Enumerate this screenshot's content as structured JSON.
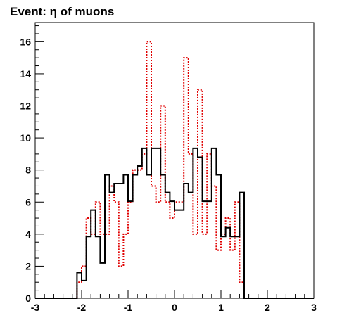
{
  "chart_data": {
    "type": "histogram",
    "title": "Event: η of muons",
    "xlabel": "",
    "ylabel": "",
    "xlim": [
      -3,
      3
    ],
    "ylim": [
      0,
      17.2
    ],
    "x_ticks": [
      "-3",
      "-2",
      "-1",
      "0",
      "1",
      "2",
      "3"
    ],
    "y_ticks": [
      "0",
      "2",
      "4",
      "6",
      "8",
      "10",
      "12",
      "14",
      "16"
    ],
    "bin_width": 0.1,
    "x_start": -2.1,
    "grid": false,
    "legend": "none",
    "series": [
      {
        "style": "solid",
        "color": "#000000",
        "values": [
          1.6,
          1.1,
          3.85,
          5.5,
          3.85,
          2.2,
          7.7,
          6.6,
          7.15,
          7.15,
          7.7,
          6.05,
          7.7,
          8.25,
          9.35,
          7.7,
          9.35,
          9.35,
          7.7,
          6.6,
          6.05,
          5.5,
          5.5,
          7.15,
          6.6,
          9.35,
          8.8,
          6.05,
          6.05,
          9.35,
          7.7,
          3.85,
          4.4,
          3.85,
          3.85,
          6.6,
          0
        ]
      },
      {
        "style": "dotted",
        "color": "#e00000",
        "values": [
          1,
          2,
          5,
          4,
          6,
          4,
          4,
          7,
          6,
          2,
          4,
          6,
          8,
          8,
          9,
          16,
          7,
          6,
          12,
          6,
          5,
          6,
          6,
          15,
          9,
          4,
          13,
          4,
          9,
          7,
          3,
          4,
          5,
          3,
          6,
          1,
          0
        ]
      }
    ],
    "colors": {
      "frame": "#000000",
      "solid_series": "#000000",
      "dotted_series": "#e00000"
    }
  }
}
